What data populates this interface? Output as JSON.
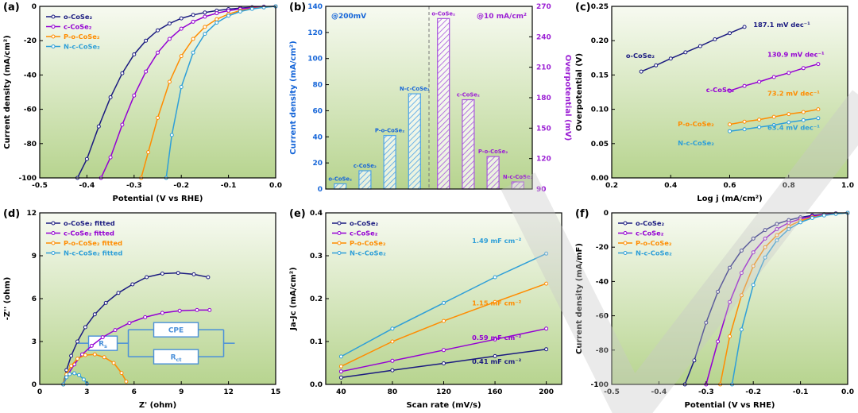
{
  "colors": {
    "o": "#1b1b80",
    "c": "#9400d3",
    "p": "#ff8c00",
    "n": "#2e9fd8",
    "b_left": "#1565d8",
    "b_left_bar": "#4da3e8",
    "b_right": "#9b1fd4",
    "b_right_bar": "#a855dd",
    "plot_bg_top": "#f7faf1",
    "plot_bg_bottom": "#b7d48f",
    "circuit": "#4a90d9",
    "watermark": "#c9c9c9",
    "frame": "#000000"
  },
  "chart_data": [
    {
      "id": "a",
      "panel_label": "(a)",
      "type": "line",
      "xlabel": "Potential (V vs RHE)",
      "ylabel": "Current density (mA/cm²)",
      "xlim": [
        -0.5,
        0
      ],
      "ylim": [
        -100,
        0
      ],
      "xticks": [
        -0.5,
        -0.4,
        -0.3,
        -0.2,
        -0.1,
        0
      ],
      "xtick_labels": [
        "-0.5",
        "-0.4",
        "-0.3",
        "-0.2",
        "-0.1",
        "0.0"
      ],
      "yticks": [
        0,
        -20,
        -40,
        -60,
        -80,
        -100
      ],
      "ytick_labels": [
        "0",
        "-20",
        "-40",
        "-60",
        "-80",
        "-100"
      ],
      "legend": true,
      "series": [
        {
          "name": "o-CoSe₂",
          "color": "o",
          "x": [
            0,
            -0.025,
            -0.05,
            -0.075,
            -0.1,
            -0.125,
            -0.15,
            -0.175,
            -0.2,
            -0.225,
            -0.25,
            -0.275,
            -0.3,
            -0.325,
            -0.35,
            -0.375,
            -0.4,
            -0.42
          ],
          "y": [
            0,
            -0.2,
            -0.5,
            -1,
            -1.6,
            -2.5,
            -3.6,
            -5,
            -7,
            -10,
            -14,
            -20,
            -28,
            -39,
            -53,
            -70,
            -89,
            -100
          ]
        },
        {
          "name": "c-CoSe₂",
          "color": "c",
          "x": [
            0,
            -0.025,
            -0.05,
            -0.075,
            -0.1,
            -0.125,
            -0.15,
            -0.175,
            -0.2,
            -0.225,
            -0.25,
            -0.275,
            -0.3,
            -0.325,
            -0.35,
            -0.37
          ],
          "y": [
            0,
            -0.3,
            -0.8,
            -1.5,
            -2.5,
            -4,
            -6,
            -9,
            -13,
            -19,
            -27,
            -38,
            -52,
            -69,
            -88,
            -100
          ]
        },
        {
          "name": "P-o-CoSe₂",
          "color": "p",
          "x": [
            0,
            -0.025,
            -0.05,
            -0.075,
            -0.1,
            -0.125,
            -0.15,
            -0.175,
            -0.2,
            -0.225,
            -0.25,
            -0.27,
            -0.285
          ],
          "y": [
            0,
            -0.5,
            -1.2,
            -2.5,
            -4.5,
            -7.5,
            -12,
            -19,
            -29,
            -44,
            -65,
            -85,
            -100
          ]
        },
        {
          "name": "N-c-CoSe₂",
          "color": "n",
          "x": [
            0,
            -0.025,
            -0.05,
            -0.075,
            -0.1,
            -0.125,
            -0.15,
            -0.175,
            -0.2,
            -0.22,
            -0.232
          ],
          "y": [
            0,
            -0.6,
            -1.5,
            -3,
            -5.5,
            -9.5,
            -16,
            -27,
            -47,
            -75,
            -100
          ]
        }
      ]
    },
    {
      "id": "b",
      "panel_label": "(b)",
      "type": "bar-dual",
      "left_ylabel": "Current density (mA/cm²)",
      "right_ylabel": "Overpotential (mV)",
      "left_annotation": "@200mV",
      "right_annotation": "@10 mA/cm²",
      "left_ylim": [
        0,
        140
      ],
      "left_yticks": [
        0,
        20,
        40,
        60,
        80,
        100,
        120,
        140
      ],
      "left_ytick_labels": [
        "0",
        "20",
        "40",
        "60",
        "80",
        "100",
        "120",
        "140"
      ],
      "right_ylim": [
        90,
        270
      ],
      "right_yticks": [
        90,
        120,
        150,
        180,
        210,
        240,
        270
      ],
      "right_ytick_labels": [
        "90",
        "120",
        "150",
        "180",
        "210",
        "240",
        "270"
      ],
      "categories": [
        "o-CoSe₂",
        "c-CoSe₂",
        "P-o-CoSe₂",
        "N-c-CoSe₂"
      ],
      "left_values": [
        4,
        14,
        41,
        73
      ],
      "right_values": [
        258,
        178,
        122,
        97
      ]
    },
    {
      "id": "c",
      "panel_label": "(c)",
      "type": "line",
      "xlabel": "Log j (mA/cm²)",
      "ylabel": "Overpotential (V)",
      "xlim": [
        0.2,
        1.0
      ],
      "ylim": [
        0,
        0.25
      ],
      "xticks": [
        0.2,
        0.4,
        0.6,
        0.8,
        1.0
      ],
      "xtick_labels": [
        "0.2",
        "0.4",
        "0.6",
        "0.8",
        "1.0"
      ],
      "yticks": [
        0,
        0.05,
        0.1,
        0.15,
        0.2,
        0.25
      ],
      "ytick_labels": [
        "0.00",
        "0.05",
        "0.10",
        "0.15",
        "0.20",
        "0.25"
      ],
      "legend": false,
      "series": [
        {
          "name": "o-CoSe₂",
          "color": "o",
          "x": [
            0.3,
            0.35,
            0.4,
            0.45,
            0.5,
            0.55,
            0.6,
            0.65
          ],
          "y": [
            0.155,
            0.164,
            0.174,
            0.183,
            0.192,
            0.202,
            0.211,
            0.22
          ]
        },
        {
          "name": "c-CoSe₂",
          "color": "c",
          "x": [
            0.6,
            0.65,
            0.7,
            0.75,
            0.8,
            0.85,
            0.9
          ],
          "y": [
            0.127,
            0.134,
            0.14,
            0.147,
            0.153,
            0.16,
            0.166
          ]
        },
        {
          "name": "P-o-CoSe₂",
          "color": "p",
          "x": [
            0.6,
            0.65,
            0.7,
            0.75,
            0.8,
            0.85,
            0.9
          ],
          "y": [
            0.078,
            0.082,
            0.085,
            0.089,
            0.093,
            0.096,
            0.1
          ]
        },
        {
          "name": "N-c-CoSe₂",
          "color": "n",
          "x": [
            0.6,
            0.65,
            0.7,
            0.75,
            0.8,
            0.85,
            0.9
          ],
          "y": [
            0.068,
            0.071,
            0.074,
            0.077,
            0.081,
            0.084,
            0.087
          ]
        }
      ],
      "annotations": [
        {
          "text": "o-CoSe₂",
          "color": "o",
          "fx": 0.06,
          "fy": 0.3
        },
        {
          "text": "187.1 mV dec⁻¹",
          "color": "o",
          "fx": 0.6,
          "fy": 0.12
        },
        {
          "text": "c-CoSe₂",
          "color": "c",
          "fx": 0.4,
          "fy": 0.5
        },
        {
          "text": "130.9 mV dec⁻¹",
          "color": "c",
          "fx": 0.66,
          "fy": 0.295
        },
        {
          "text": "P-o-CoSe₂",
          "color": "p",
          "fx": 0.28,
          "fy": 0.7
        },
        {
          "text": "73.2 mV dec⁻¹",
          "color": "p",
          "fx": 0.66,
          "fy": 0.52
        },
        {
          "text": "N-c-CoSe₂",
          "color": "n",
          "fx": 0.28,
          "fy": 0.81
        },
        {
          "text": "63.4 mV dec⁻¹",
          "color": "n",
          "fx": 0.66,
          "fy": 0.72
        }
      ]
    },
    {
      "id": "d",
      "panel_label": "(d)",
      "type": "line",
      "xlabel": "Z' (ohm)",
      "ylabel": "-Z'' (ohm)",
      "xlim": [
        0,
        15
      ],
      "ylim": [
        0,
        12
      ],
      "xticks": [
        0,
        3,
        6,
        9,
        12,
        15
      ],
      "xtick_labels": [
        "0",
        "3",
        "6",
        "9",
        "12",
        "15"
      ],
      "yticks": [
        0,
        3,
        6,
        9,
        12
      ],
      "ytick_labels": [
        "0",
        "3",
        "6",
        "9",
        "12"
      ],
      "legend": true,
      "inset_circuit": {
        "rs_main": "R",
        "rs_sub": "s",
        "cpe": "CPE",
        "rct_main": "R",
        "rct_sub": "ct"
      },
      "series": [
        {
          "name": "o-CoSe₂ fitted",
          "color": "o",
          "x": [
            1.5,
            1.7,
            2.0,
            2.4,
            2.9,
            3.5,
            4.2,
            5.0,
            5.9,
            6.8,
            7.8,
            8.8,
            9.8,
            10.7
          ],
          "y": [
            0,
            1.0,
            2.0,
            3.0,
            4.0,
            4.9,
            5.7,
            6.4,
            7.0,
            7.5,
            7.75,
            7.8,
            7.7,
            7.5
          ]
        },
        {
          "name": "c-CoSe₂ fitted",
          "color": "c",
          "x": [
            1.5,
            1.8,
            2.2,
            2.7,
            3.3,
            4.0,
            4.8,
            5.7,
            6.7,
            7.8,
            8.9,
            10.0,
            10.8
          ],
          "y": [
            0,
            0.7,
            1.4,
            2.1,
            2.7,
            3.3,
            3.8,
            4.3,
            4.7,
            5.0,
            5.15,
            5.2,
            5.2
          ]
        },
        {
          "name": "P-o-CoSe₂ fitted",
          "color": "p",
          "x": [
            1.5,
            1.7,
            2.0,
            2.4,
            2.9,
            3.5,
            4.1,
            4.7,
            5.2,
            5.5
          ],
          "y": [
            0,
            0.7,
            1.3,
            1.8,
            2.05,
            2.1,
            1.9,
            1.5,
            0.8,
            0.2
          ]
        },
        {
          "name": "N-c-CoSe₂ fitted",
          "color": "n",
          "x": [
            1.5,
            1.7,
            1.9,
            2.2,
            2.5,
            2.8,
            3.0
          ],
          "y": [
            0,
            0.5,
            0.72,
            0.78,
            0.65,
            0.35,
            0.05
          ]
        }
      ]
    },
    {
      "id": "e",
      "panel_label": "(e)",
      "type": "line",
      "xlabel": "Scan rate (mV/s)",
      "ylabel": "Ja-Jc (mA/cm²)",
      "xlim": [
        28,
        212
      ],
      "ylim": [
        0,
        0.4
      ],
      "xticks": [
        40,
        80,
        120,
        160,
        200
      ],
      "xtick_labels": [
        "40",
        "80",
        "120",
        "160",
        "200"
      ],
      "yticks": [
        0,
        0.1,
        0.2,
        0.3,
        0.4
      ],
      "ytick_labels": [
        "0.0",
        "0.1",
        "0.2",
        "0.3",
        "0.4"
      ],
      "legend": true,
      "series": [
        {
          "name": "o-CoSe₂",
          "color": "o",
          "x": [
            40,
            80,
            120,
            160,
            200
          ],
          "y": [
            0.016,
            0.033,
            0.049,
            0.066,
            0.082
          ]
        },
        {
          "name": "c-CoSe₂",
          "color": "c",
          "x": [
            40,
            80,
            120,
            160,
            200
          ],
          "y": [
            0.03,
            0.055,
            0.08,
            0.105,
            0.13
          ]
        },
        {
          "name": "P-o-CoSe₂",
          "color": "p",
          "x": [
            40,
            80,
            120,
            160,
            200
          ],
          "y": [
            0.042,
            0.1,
            0.148,
            0.192,
            0.235
          ]
        },
        {
          "name": "N-c-CoSe₂",
          "color": "n",
          "x": [
            40,
            80,
            120,
            160,
            200
          ],
          "y": [
            0.065,
            0.13,
            0.19,
            0.25,
            0.305
          ]
        }
      ],
      "annotations": [
        {
          "text": "1.49 mF cm⁻²",
          "color": "n",
          "fx": 0.62,
          "fy": 0.175
        },
        {
          "text": "1.15 mF cm⁻²",
          "color": "p",
          "fx": 0.62,
          "fy": 0.54
        },
        {
          "text": "0.59 mF cm⁻²",
          "color": "c",
          "fx": 0.62,
          "fy": 0.74
        },
        {
          "text": "0.41 mF cm⁻²",
          "color": "o",
          "fx": 0.62,
          "fy": 0.88
        }
      ]
    },
    {
      "id": "f",
      "panel_label": "(f)",
      "type": "line",
      "xlabel": "Potential (V vs RHE)",
      "ylabel": "Current density (mA/mF)",
      "xlim": [
        -0.5,
        0
      ],
      "ylim": [
        -100,
        0
      ],
      "xticks": [
        -0.5,
        -0.4,
        -0.3,
        -0.2,
        -0.1,
        0
      ],
      "xtick_labels": [
        "-0.5",
        "-0.4",
        "-0.3",
        "-0.2",
        "-0.1",
        "0.0"
      ],
      "yticks": [
        0,
        -20,
        -40,
        -60,
        -80,
        -100
      ],
      "ytick_labels": [
        "0",
        "-20",
        "-40",
        "-60",
        "-80",
        "-100"
      ],
      "legend": true,
      "series": [
        {
          "name": "o-CoSe₂",
          "color": "o",
          "x": [
            0,
            -0.025,
            -0.05,
            -0.075,
            -0.1,
            -0.125,
            -0.15,
            -0.175,
            -0.2,
            -0.225,
            -0.25,
            -0.275,
            -0.3,
            -0.325,
            -0.345
          ],
          "y": [
            0,
            -0.3,
            -0.8,
            -1.5,
            -2.6,
            -4.2,
            -6.5,
            -10,
            -15,
            -22,
            -32,
            -46,
            -64,
            -86,
            -100
          ]
        },
        {
          "name": "c-CoSe₂",
          "color": "c",
          "x": [
            0,
            -0.025,
            -0.05,
            -0.075,
            -0.1,
            -0.125,
            -0.15,
            -0.175,
            -0.2,
            -0.225,
            -0.25,
            -0.275,
            -0.3
          ],
          "y": [
            0,
            -0.4,
            -1,
            -2,
            -3.5,
            -5.8,
            -9.5,
            -15,
            -23,
            -35,
            -52,
            -75,
            -100
          ]
        },
        {
          "name": "P-o-CoSe₂",
          "color": "p",
          "x": [
            0,
            -0.025,
            -0.05,
            -0.075,
            -0.1,
            -0.125,
            -0.15,
            -0.175,
            -0.2,
            -0.225,
            -0.25,
            -0.27
          ],
          "y": [
            0,
            -0.5,
            -1.3,
            -2.6,
            -4.6,
            -7.8,
            -13,
            -20,
            -31,
            -48,
            -72,
            -100
          ]
        },
        {
          "name": "N-c-CoSe₂",
          "color": "n",
          "x": [
            0,
            -0.025,
            -0.05,
            -0.075,
            -0.1,
            -0.125,
            -0.15,
            -0.175,
            -0.2,
            -0.225,
            -0.245
          ],
          "y": [
            0,
            -0.6,
            -1.5,
            -3,
            -5.5,
            -9.5,
            -16,
            -26,
            -42,
            -68,
            -100
          ]
        }
      ]
    }
  ]
}
